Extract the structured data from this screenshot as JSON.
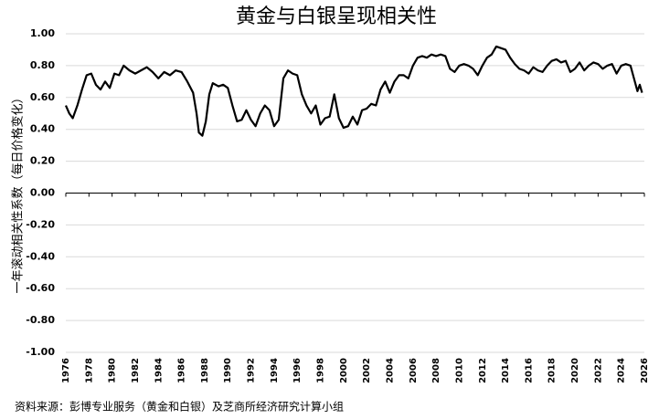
{
  "chart_data": {
    "type": "line",
    "title": "黄金与白银呈现相关性",
    "y_label": "一年滚动相关性系数（每日价格变化）",
    "source": "资料来源：彭博专业服务（黄金和白银）及芝商所经济研究计算小组",
    "color": "#000000",
    "xlim": [
      1976,
      2026
    ],
    "ylim": [
      -1,
      1
    ],
    "xticks": [
      1976,
      1978,
      1980,
      1982,
      1984,
      1986,
      1988,
      1990,
      1992,
      1994,
      1996,
      1998,
      2000,
      2002,
      2004,
      2006,
      2008,
      2010,
      2012,
      2014,
      2016,
      2018,
      2020,
      2022,
      2024,
      2026
    ],
    "yticks": [
      {
        "value": 1,
        "label": "1.00"
      },
      {
        "value": 0.8,
        "label": "0.80"
      },
      {
        "value": 0.6,
        "label": "0.60"
      },
      {
        "value": 0.4,
        "label": "0.40"
      },
      {
        "value": 0.2,
        "label": "0.20"
      },
      {
        "value": 0,
        "label": "0.00"
      },
      {
        "value": -0.2,
        "label": "-0.20"
      },
      {
        "value": -0.4,
        "label": "-0.40"
      },
      {
        "value": -0.6,
        "label": "-0.60"
      },
      {
        "value": -0.8,
        "label": "-0.80"
      },
      {
        "value": -1,
        "label": "-1.00"
      }
    ],
    "grid": true,
    "x": [
      1976.0,
      1976.3,
      1976.6,
      1977.0,
      1977.4,
      1977.8,
      1978.2,
      1978.6,
      1979.0,
      1979.4,
      1979.8,
      1980.2,
      1980.6,
      1981.0,
      1981.5,
      1982.0,
      1982.5,
      1983.0,
      1983.5,
      1984.0,
      1984.5,
      1985.0,
      1985.5,
      1986.0,
      1986.5,
      1987.0,
      1987.3,
      1987.5,
      1987.8,
      1988.1,
      1988.4,
      1988.7,
      1989.2,
      1989.6,
      1990.0,
      1990.4,
      1990.8,
      1991.2,
      1991.6,
      1992.0,
      1992.4,
      1992.8,
      1993.2,
      1993.6,
      1994.0,
      1994.4,
      1994.8,
      1995.2,
      1995.6,
      1996.0,
      1996.4,
      1996.8,
      1997.2,
      1997.6,
      1998.0,
      1998.4,
      1998.8,
      1999.2,
      1999.6,
      2000.0,
      2000.4,
      2000.8,
      2001.2,
      2001.6,
      2002.0,
      2002.4,
      2002.8,
      2003.2,
      2003.6,
      2004.0,
      2004.4,
      2004.8,
      2005.2,
      2005.6,
      2006.0,
      2006.4,
      2006.8,
      2007.2,
      2007.6,
      2008.0,
      2008.4,
      2008.8,
      2009.2,
      2009.6,
      2010.0,
      2010.4,
      2010.8,
      2011.2,
      2011.6,
      2012.0,
      2012.4,
      2012.8,
      2013.2,
      2013.6,
      2014.0,
      2014.4,
      2014.8,
      2015.2,
      2015.6,
      2016.0,
      2016.4,
      2016.8,
      2017.2,
      2017.6,
      2018.0,
      2018.4,
      2018.8,
      2019.2,
      2019.6,
      2020.0,
      2020.4,
      2020.8,
      2021.2,
      2021.6,
      2022.0,
      2022.4,
      2022.8,
      2023.2,
      2023.6,
      2024.0,
      2024.4,
      2024.8,
      2025.1,
      2025.4,
      2025.6,
      2025.8
    ],
    "values": [
      0.55,
      0.5,
      0.47,
      0.55,
      0.65,
      0.74,
      0.75,
      0.68,
      0.65,
      0.7,
      0.66,
      0.75,
      0.74,
      0.8,
      0.77,
      0.75,
      0.77,
      0.79,
      0.76,
      0.72,
      0.76,
      0.74,
      0.77,
      0.76,
      0.7,
      0.63,
      0.5,
      0.38,
      0.36,
      0.45,
      0.62,
      0.69,
      0.67,
      0.68,
      0.66,
      0.55,
      0.45,
      0.46,
      0.52,
      0.46,
      0.42,
      0.5,
      0.55,
      0.52,
      0.42,
      0.46,
      0.72,
      0.77,
      0.75,
      0.74,
      0.62,
      0.55,
      0.5,
      0.55,
      0.43,
      0.47,
      0.48,
      0.62,
      0.47,
      0.41,
      0.42,
      0.48,
      0.43,
      0.52,
      0.53,
      0.56,
      0.55,
      0.65,
      0.7,
      0.63,
      0.7,
      0.74,
      0.74,
      0.72,
      0.8,
      0.85,
      0.86,
      0.85,
      0.87,
      0.86,
      0.87,
      0.86,
      0.78,
      0.76,
      0.8,
      0.81,
      0.8,
      0.78,
      0.74,
      0.8,
      0.85,
      0.87,
      0.92,
      0.91,
      0.9,
      0.85,
      0.81,
      0.78,
      0.77,
      0.75,
      0.79,
      0.77,
      0.76,
      0.8,
      0.83,
      0.84,
      0.82,
      0.83,
      0.76,
      0.78,
      0.82,
      0.77,
      0.8,
      0.82,
      0.81,
      0.78,
      0.8,
      0.81,
      0.75,
      0.8,
      0.81,
      0.8,
      0.72,
      0.64,
      0.68,
      0.63
    ]
  }
}
